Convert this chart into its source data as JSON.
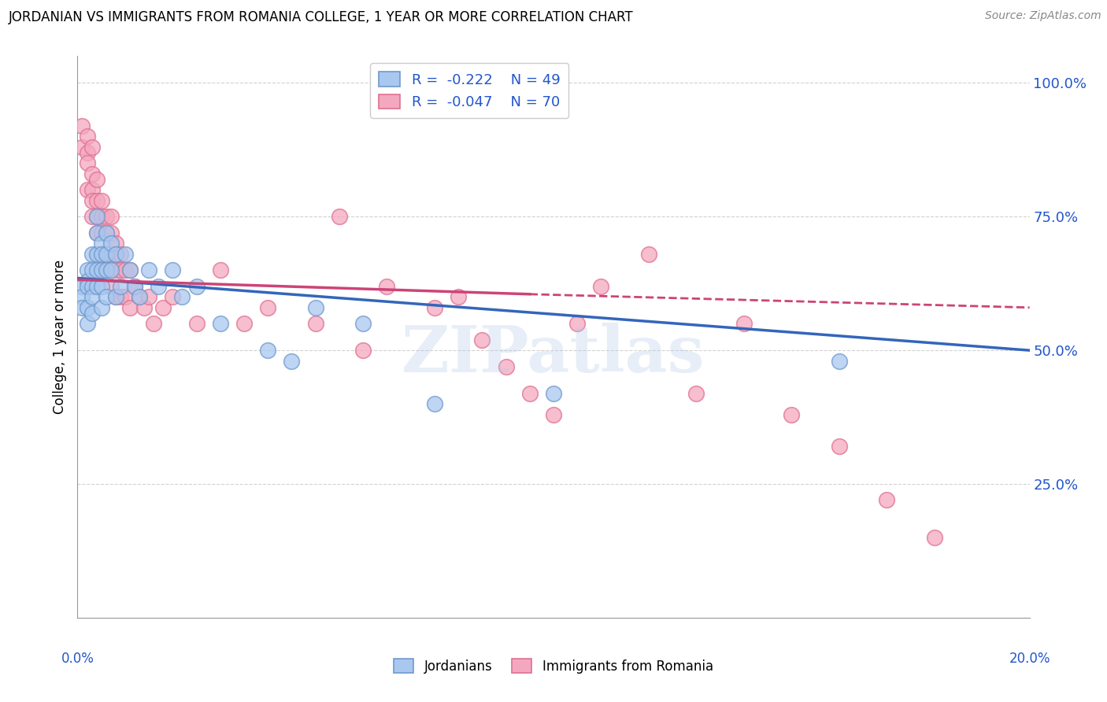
{
  "title": "JORDANIAN VS IMMIGRANTS FROM ROMANIA COLLEGE, 1 YEAR OR MORE CORRELATION CHART",
  "source": "Source: ZipAtlas.com",
  "ylabel": "College, 1 year or more",
  "yticks": [
    0.0,
    0.25,
    0.5,
    0.75,
    1.0
  ],
  "ytick_labels": [
    "",
    "25.0%",
    "50.0%",
    "75.0%",
    "100.0%"
  ],
  "xlim": [
    0.0,
    0.2
  ],
  "ylim": [
    0.0,
    1.05
  ],
  "blue_R": -0.222,
  "blue_N": 49,
  "pink_R": -0.047,
  "pink_N": 70,
  "blue_label": "Jordanians",
  "pink_label": "Immigrants from Romania",
  "blue_color": "#A8C8F0",
  "pink_color": "#F4A8C0",
  "blue_edge": "#7099CC",
  "pink_edge": "#E07090",
  "blue_line_color": "#3366BB",
  "pink_line_color": "#CC4477",
  "watermark": "ZIPatlas",
  "background": "#FFFFFF",
  "grid_color": "#CCCCCC",
  "blue_scatter_x": [
    0.001,
    0.001,
    0.001,
    0.002,
    0.002,
    0.002,
    0.002,
    0.002,
    0.003,
    0.003,
    0.003,
    0.003,
    0.003,
    0.004,
    0.004,
    0.004,
    0.004,
    0.004,
    0.005,
    0.005,
    0.005,
    0.005,
    0.005,
    0.006,
    0.006,
    0.006,
    0.006,
    0.007,
    0.007,
    0.008,
    0.008,
    0.009,
    0.01,
    0.011,
    0.012,
    0.013,
    0.015,
    0.017,
    0.02,
    0.022,
    0.025,
    0.03,
    0.04,
    0.045,
    0.05,
    0.06,
    0.075,
    0.1,
    0.16
  ],
  "blue_scatter_y": [
    0.62,
    0.6,
    0.58,
    0.65,
    0.63,
    0.62,
    0.58,
    0.55,
    0.68,
    0.65,
    0.62,
    0.6,
    0.57,
    0.75,
    0.72,
    0.68,
    0.65,
    0.62,
    0.7,
    0.68,
    0.65,
    0.62,
    0.58,
    0.72,
    0.68,
    0.65,
    0.6,
    0.7,
    0.65,
    0.68,
    0.6,
    0.62,
    0.68,
    0.65,
    0.62,
    0.6,
    0.65,
    0.62,
    0.65,
    0.6,
    0.62,
    0.55,
    0.5,
    0.48,
    0.58,
    0.55,
    0.4,
    0.42,
    0.48
  ],
  "pink_scatter_x": [
    0.001,
    0.001,
    0.002,
    0.002,
    0.002,
    0.002,
    0.003,
    0.003,
    0.003,
    0.003,
    0.003,
    0.004,
    0.004,
    0.004,
    0.004,
    0.004,
    0.005,
    0.005,
    0.005,
    0.005,
    0.005,
    0.006,
    0.006,
    0.006,
    0.006,
    0.007,
    0.007,
    0.007,
    0.007,
    0.008,
    0.008,
    0.008,
    0.008,
    0.009,
    0.009,
    0.009,
    0.01,
    0.01,
    0.011,
    0.011,
    0.012,
    0.013,
    0.014,
    0.015,
    0.016,
    0.018,
    0.02,
    0.025,
    0.03,
    0.035,
    0.04,
    0.05,
    0.055,
    0.06,
    0.065,
    0.075,
    0.08,
    0.085,
    0.09,
    0.095,
    0.1,
    0.105,
    0.11,
    0.12,
    0.13,
    0.14,
    0.15,
    0.16,
    0.17,
    0.18
  ],
  "pink_scatter_y": [
    0.92,
    0.88,
    0.9,
    0.87,
    0.85,
    0.8,
    0.88,
    0.83,
    0.8,
    0.78,
    0.75,
    0.82,
    0.78,
    0.75,
    0.72,
    0.68,
    0.78,
    0.75,
    0.72,
    0.68,
    0.65,
    0.75,
    0.72,
    0.68,
    0.65,
    0.75,
    0.72,
    0.68,
    0.62,
    0.7,
    0.68,
    0.65,
    0.6,
    0.68,
    0.65,
    0.6,
    0.65,
    0.6,
    0.65,
    0.58,
    0.62,
    0.6,
    0.58,
    0.6,
    0.55,
    0.58,
    0.6,
    0.55,
    0.65,
    0.55,
    0.58,
    0.55,
    0.75,
    0.5,
    0.62,
    0.58,
    0.6,
    0.52,
    0.47,
    0.42,
    0.38,
    0.55,
    0.62,
    0.68,
    0.42,
    0.55,
    0.38,
    0.32,
    0.22,
    0.15
  ]
}
